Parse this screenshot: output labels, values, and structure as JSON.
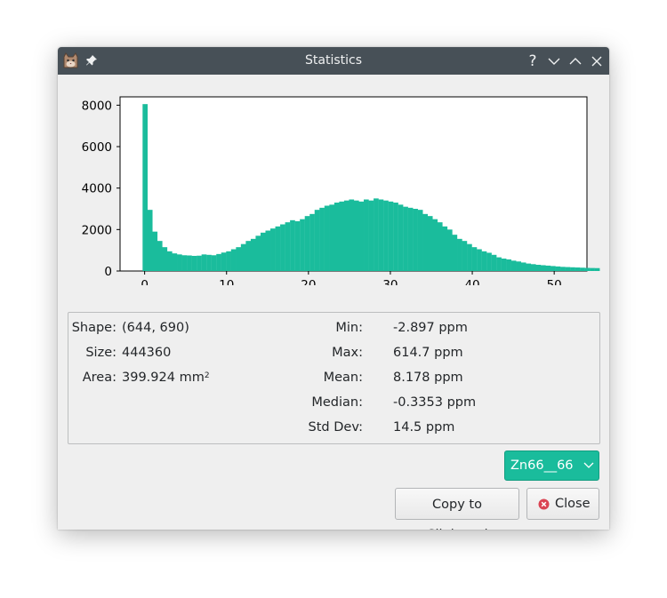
{
  "window": {
    "title": "Statistics",
    "buttons": {
      "help": "?"
    }
  },
  "stats": {
    "left": [
      {
        "label": "Shape:",
        "value": "(644, 690)"
      },
      {
        "label": "Size:",
        "value": "444360"
      },
      {
        "label": "Area:",
        "value": "399.924 mm",
        "suffix": "2"
      }
    ],
    "right": [
      {
        "label": "Min:",
        "value": "-2.897 ppm"
      },
      {
        "label": "Max:",
        "value": "614.7 ppm"
      },
      {
        "label": "Mean:",
        "value": "8.178 ppm"
      },
      {
        "label": "Median:",
        "value": "-0.3353 ppm"
      },
      {
        "label": "Std Dev:",
        "value": "14.5 ppm"
      }
    ]
  },
  "element_select": {
    "selected": "Zn66__66"
  },
  "actions": {
    "copy_label": "Copy to Clipboard",
    "close_label": "Close"
  },
  "colors": {
    "bar": "#1abc9c",
    "titlebar": "#475057",
    "close_icon": "#da4453"
  },
  "chart_data": {
    "type": "bar",
    "xlim": [
      -3,
      54
    ],
    "ylim": [
      0,
      8400
    ],
    "xticks": [
      0,
      10,
      20,
      30,
      40,
      50
    ],
    "yticks": [
      0,
      2000,
      4000,
      6000,
      8000
    ],
    "bin_start": -0.25,
    "bin_width": 0.6,
    "values": [
      8050,
      2950,
      1900,
      1450,
      1150,
      950,
      850,
      800,
      760,
      750,
      730,
      740,
      800,
      780,
      760,
      820,
      890,
      950,
      1050,
      1150,
      1300,
      1450,
      1550,
      1700,
      1850,
      1950,
      2050,
      2150,
      2250,
      2350,
      2450,
      2400,
      2500,
      2650,
      2750,
      2950,
      3050,
      3150,
      3200,
      3300,
      3350,
      3400,
      3450,
      3400,
      3350,
      3450,
      3400,
      3500,
      3450,
      3400,
      3350,
      3300,
      3200,
      3100,
      3050,
      3000,
      2950,
      2750,
      2650,
      2500,
      2350,
      2150,
      2000,
      1750,
      1550,
      1450,
      1300,
      1150,
      1050,
      950,
      880,
      780,
      660,
      600,
      560,
      500,
      460,
      410,
      360,
      330,
      300,
      280,
      260,
      240,
      220,
      200,
      190,
      180,
      170,
      160,
      150,
      145,
      140
    ]
  }
}
